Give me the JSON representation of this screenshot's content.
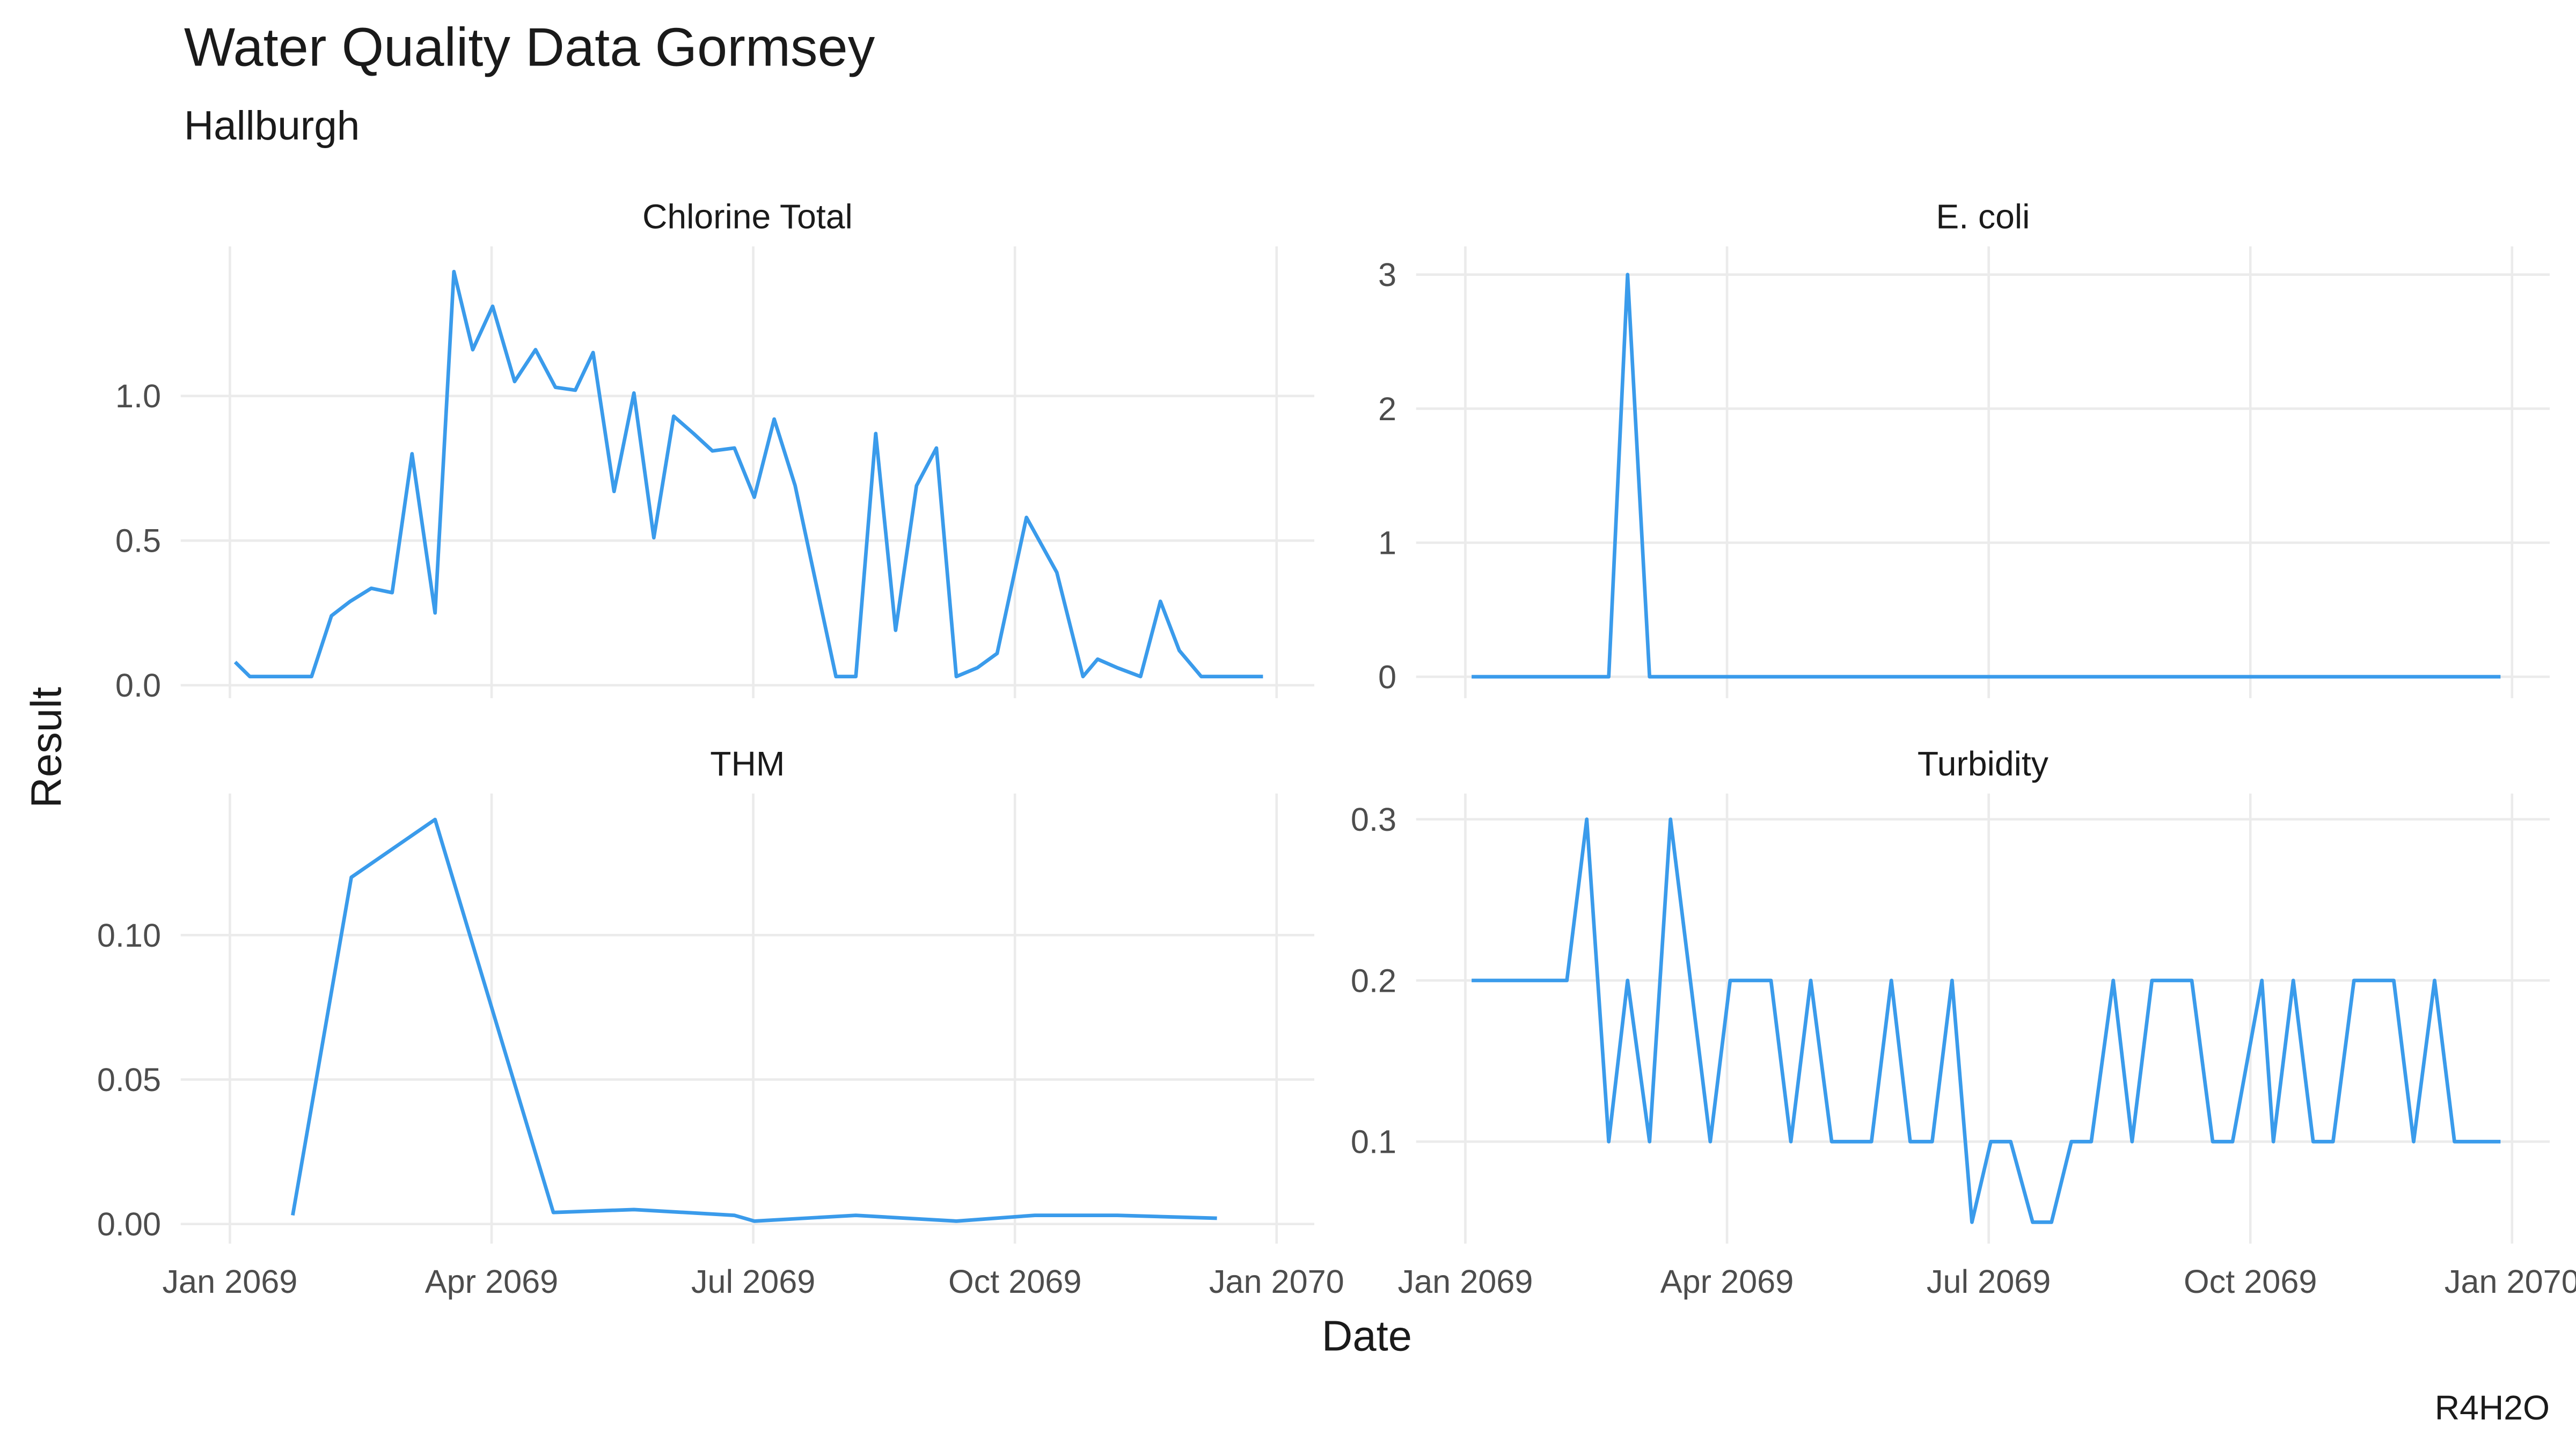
{
  "title": "Water Quality Data Gormsey",
  "subtitle": "Hallburgh",
  "xlabel": "Date",
  "ylabel": "Result",
  "caption": "R4H2O",
  "chart_data": [
    {
      "type": "line",
      "title": "Chlorine Total",
      "color": "#3a9beb",
      "grid": true,
      "x_tick_labels": false,
      "xlim": [
        2068.953,
        2070.036
      ],
      "xticks": [
        2069,
        2069.25,
        2069.5,
        2069.75,
        2070
      ],
      "ylim": [
        -0.045,
        1.517
      ],
      "yticks": [
        {
          "value": 0,
          "label": "0.0"
        },
        {
          "value": 0.5,
          "label": "0.5"
        },
        {
          "value": 1,
          "label": "1.0"
        }
      ],
      "x": [
        2069.005,
        2069.019,
        2069.078,
        2069.097,
        2069.115,
        2069.135,
        2069.155,
        2069.174,
        2069.196,
        2069.214,
        2069.232,
        2069.251,
        2069.272,
        2069.292,
        2069.311,
        2069.33,
        2069.347,
        2069.367,
        2069.386,
        2069.405,
        2069.424,
        2069.443,
        2069.461,
        2069.482,
        2069.501,
        2069.52,
        2069.54,
        2069.579,
        2069.598,
        2069.617,
        2069.636,
        2069.656,
        2069.675,
        2069.694,
        2069.714,
        2069.733,
        2069.761,
        2069.79,
        2069.815,
        2069.829,
        2069.848,
        2069.87,
        2069.889,
        2069.907,
        2069.928,
        2069.987
      ],
      "values": [
        0.08,
        0.03,
        0.03,
        0.24,
        0.29,
        0.335,
        0.32,
        0.8,
        0.25,
        1.43,
        1.16,
        1.31,
        1.05,
        1.16,
        1.03,
        1.02,
        1.15,
        0.67,
        1.01,
        0.51,
        0.93,
        0.87,
        0.81,
        0.82,
        0.65,
        0.92,
        0.69,
        0.03,
        0.03,
        0.87,
        0.19,
        0.69,
        0.82,
        0.03,
        0.06,
        0.11,
        0.58,
        0.39,
        0.03,
        0.09,
        0.06,
        0.03,
        0.29,
        0.12,
        0.03,
        0.03
      ]
    },
    {
      "type": "line",
      "title": "E. coli",
      "color": "#3a9beb",
      "grid": true,
      "x_tick_labels": false,
      "xlim": [
        2068.953,
        2070.036
      ],
      "xticks": [
        2069,
        2069.25,
        2069.5,
        2069.75,
        2070
      ],
      "ylim": [
        -0.16,
        3.21
      ],
      "yticks": [
        0,
        1,
        2,
        3
      ],
      "x": [
        2069.006,
        2069.137,
        2069.155,
        2069.176,
        2069.989
      ],
      "values": [
        0,
        0,
        3,
        0,
        0
      ]
    },
    {
      "type": "line",
      "title": "THM",
      "color": "#3a9beb",
      "grid": true,
      "x_tick_labels": true,
      "xlim": [
        2068.953,
        2070.036
      ],
      "xticks": [
        {
          "value": 2069,
          "label": "Jan 2069"
        },
        {
          "value": 2069.25,
          "label": "Apr 2069"
        },
        {
          "value": 2069.5,
          "label": "Jul 2069"
        },
        {
          "value": 2069.75,
          "label": "Oct 2069"
        },
        {
          "value": 2070,
          "label": "Jan 2070"
        }
      ],
      "ylim": [
        -0.0068,
        0.149
      ],
      "yticks": [
        {
          "value": 0,
          "label": "0.00"
        },
        {
          "value": 0.05,
          "label": "0.05"
        },
        {
          "value": 0.1,
          "label": "0.10"
        }
      ],
      "x": [
        2069.06,
        2069.116,
        2069.196,
        2069.309,
        2069.386,
        2069.482,
        2069.501,
        2069.598,
        2069.694,
        2069.769,
        2069.848,
        2069.943
      ],
      "values": [
        0.003,
        0.12,
        0.14,
        0.004,
        0.005,
        0.003,
        0.001,
        0.003,
        0.001,
        0.003,
        0.003,
        0.002
      ]
    },
    {
      "type": "line",
      "title": "Turbidity",
      "color": "#3a9beb",
      "grid": true,
      "x_tick_labels": true,
      "xlim": [
        2068.953,
        2070.036
      ],
      "xticks": [
        {
          "value": 2069,
          "label": "Jan 2069"
        },
        {
          "value": 2069.25,
          "label": "Apr 2069"
        },
        {
          "value": 2069.5,
          "label": "Jul 2069"
        },
        {
          "value": 2069.75,
          "label": "Oct 2069"
        },
        {
          "value": 2070,
          "label": "Jan 2070"
        }
      ],
      "ylim": [
        0.0367,
        0.316
      ],
      "yticks": [
        0.1,
        0.2,
        0.3
      ],
      "x": [
        2069.006,
        2069.097,
        2069.116,
        2069.137,
        2069.155,
        2069.176,
        2069.196,
        2069.234,
        2069.253,
        2069.292,
        2069.311,
        2069.33,
        2069.35,
        2069.388,
        2069.407,
        2069.425,
        2069.446,
        2069.465,
        2069.484,
        2069.502,
        2069.521,
        2069.542,
        2069.56,
        2069.579,
        2069.598,
        2069.619,
        2069.637,
        2069.656,
        2069.694,
        2069.714,
        2069.733,
        2069.761,
        2069.772,
        2069.791,
        2069.81,
        2069.829,
        2069.849,
        2069.887,
        2069.906,
        2069.926,
        2069.945,
        2069.989
      ],
      "values": [
        0.2,
        0.2,
        0.3,
        0.1,
        0.2,
        0.1,
        0.3,
        0.1,
        0.2,
        0.2,
        0.1,
        0.2,
        0.1,
        0.1,
        0.2,
        0.1,
        0.1,
        0.2,
        0.05,
        0.1,
        0.1,
        0.05,
        0.05,
        0.1,
        0.1,
        0.2,
        0.1,
        0.2,
        0.2,
        0.1,
        0.1,
        0.2,
        0.1,
        0.2,
        0.1,
        0.1,
        0.2,
        0.2,
        0.1,
        0.2,
        0.1,
        0.1
      ]
    }
  ]
}
